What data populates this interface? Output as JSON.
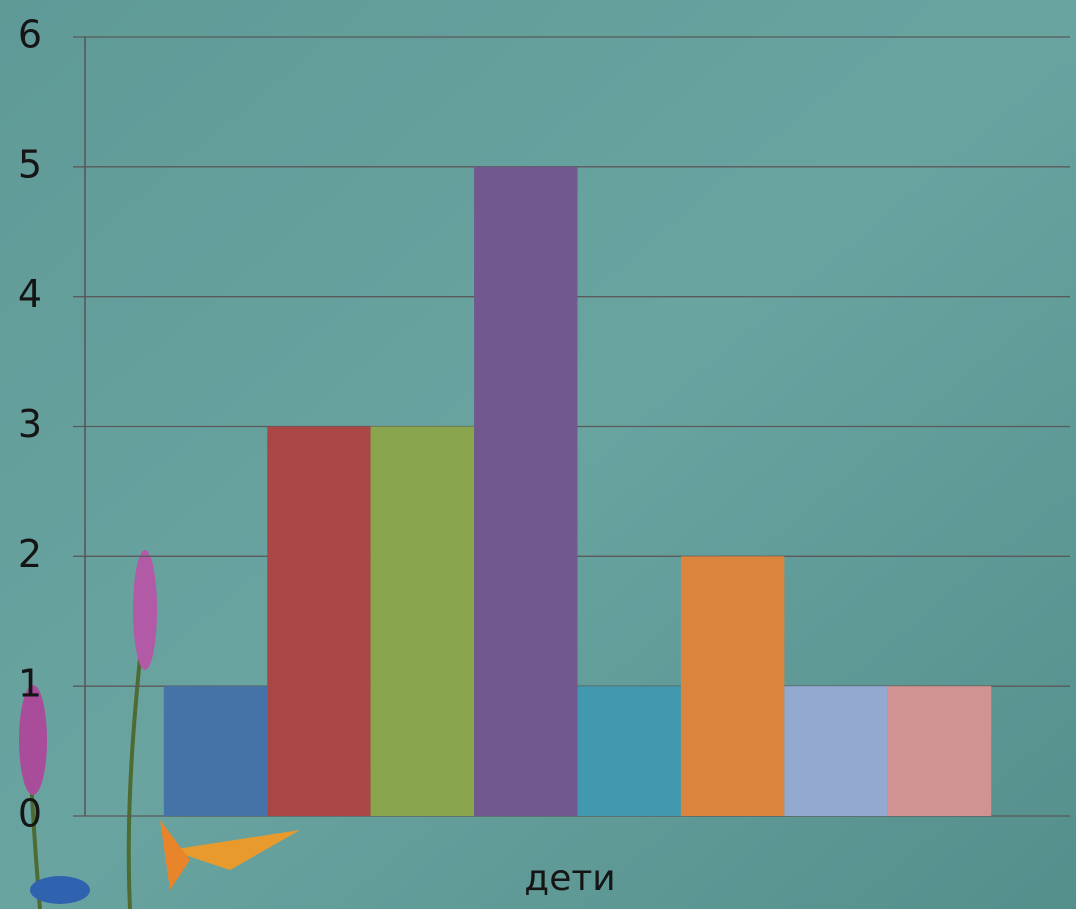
{
  "chart_data": {
    "type": "bar",
    "categories": [
      "дети"
    ],
    "series": [
      {
        "color": "#4572a7",
        "values": [
          1
        ]
      },
      {
        "color": "#aa4643",
        "values": [
          3
        ]
      },
      {
        "color": "#89a54e",
        "values": [
          3
        ]
      },
      {
        "color": "#71588f",
        "values": [
          5
        ]
      },
      {
        "color": "#4198af",
        "values": [
          1
        ]
      },
      {
        "color": "#db843d",
        "values": [
          2
        ]
      },
      {
        "color": "#93a9cf",
        "values": [
          1
        ]
      },
      {
        "color": "#d19392",
        "values": [
          1
        ]
      }
    ],
    "ylim": [
      0,
      6
    ],
    "yticks": [
      0,
      1,
      2,
      3,
      4,
      5,
      6
    ],
    "grid": true
  }
}
